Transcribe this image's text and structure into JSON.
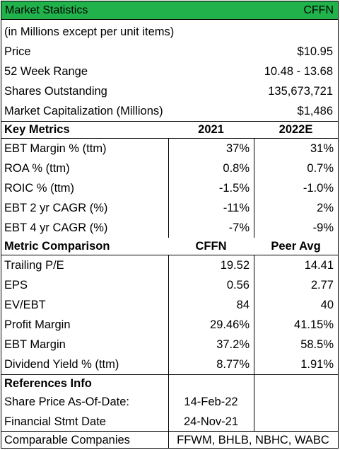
{
  "header": {
    "title": "Market Statistics",
    "ticker": "CFFN"
  },
  "subtitle": "(in Millions except per unit items)",
  "stats": [
    {
      "label": "Price",
      "value": "$10.95"
    },
    {
      "label": "52 Week Range",
      "value": "10.48 - 13.68"
    },
    {
      "label": "Shares Outstanding",
      "value": "135,673,721"
    },
    {
      "label": "Market Capitalization (Millions)",
      "value": "$1,486"
    }
  ],
  "key_metrics": {
    "heading": "Key Metrics",
    "col1": "2021",
    "col2": "2022E",
    "rows": [
      {
        "label": "EBT Margin % (ttm)",
        "v1": "37%",
        "v2": "31%"
      },
      {
        "label": "ROA % (ttm)",
        "v1": "0.8%",
        "v2": "0.7%"
      },
      {
        "label": "ROIC % (ttm)",
        "v1": "-1.5%",
        "v2": "-1.0%"
      },
      {
        "label": "EBT 2 yr CAGR (%)",
        "v1": "-11%",
        "v2": "2%"
      },
      {
        "label": "EBT 4 yr CAGR (%)",
        "v1": "-7%",
        "v2": "-9%"
      }
    ]
  },
  "comparison": {
    "heading": "Metric Comparison",
    "col1": "CFFN",
    "col2": "Peer Avg",
    "rows": [
      {
        "label": "Trailing P/E",
        "v1": "19.52",
        "v2": "14.41"
      },
      {
        "label": "EPS",
        "v1": "0.56",
        "v2": "2.77"
      },
      {
        "label": "EV/EBT",
        "v1": "84",
        "v2": "40"
      },
      {
        "label": "Profit Margin",
        "v1": "29.46%",
        "v2": "41.15%"
      },
      {
        "label": "EBT Margin",
        "v1": "37.2%",
        "v2": "58.5%"
      },
      {
        "label": "Dividend Yield % (ttm)",
        "v1": "8.77%",
        "v2": "1.91%"
      }
    ]
  },
  "references": {
    "heading": "References Info",
    "rows": [
      {
        "label": "Share Price As-Of-Date:",
        "value": "14-Feb-22"
      },
      {
        "label": "Financial Stmt Date",
        "value": "24-Nov-21"
      }
    ],
    "comparable_label": "Comparable Companies",
    "comparable_value": "FFWM, BHLB, NBHC, WABC"
  }
}
